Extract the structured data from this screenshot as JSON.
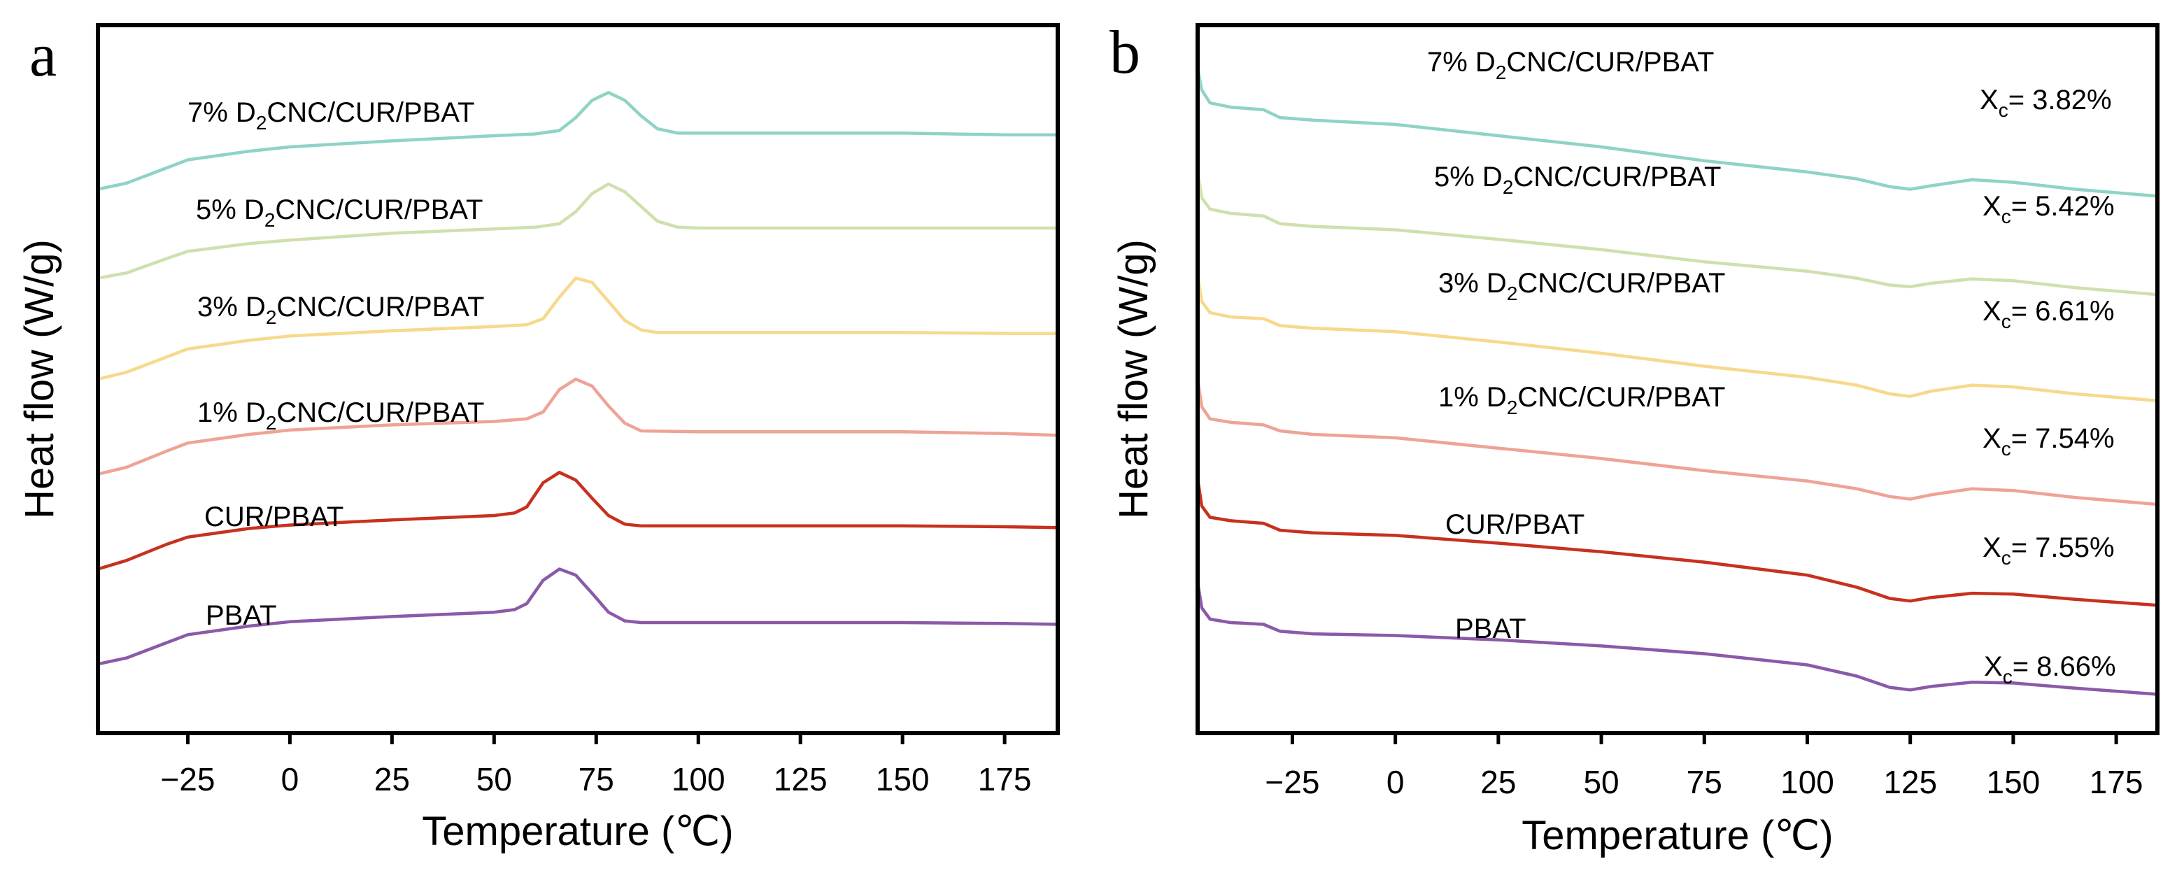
{
  "chart_data": [
    {
      "panel_letter": "a",
      "type": "line",
      "xlabel": "Temperature (℃)",
      "ylabel": "Heat flow (W/g)",
      "xlim": [
        -47,
        188
      ],
      "xticks": [
        "−25",
        "0",
        "25",
        "50",
        "75",
        "100",
        "125",
        "150",
        "175"
      ],
      "xtick_values": [
        -25,
        0,
        25,
        50,
        75,
        100,
        125,
        150,
        175
      ],
      "y_ticks_shown": false,
      "series": [
        {
          "name": "7% D2CNC/CUR/PBAT",
          "label_main": "7% D",
          "label_sub": "2",
          "label_rest": "CNC/CUR/PBAT",
          "color": "#8fd3c6",
          "x": [
            -47,
            -40,
            -30,
            -25,
            -10,
            0,
            25,
            50,
            60,
            66,
            70,
            74,
            78,
            82,
            86,
            90,
            95,
            100,
            125,
            150,
            175,
            188
          ],
          "y": [
            4.3,
            4.37,
            4.55,
            4.64,
            4.74,
            4.79,
            4.86,
            4.92,
            4.94,
            4.98,
            5.13,
            5.33,
            5.42,
            5.33,
            5.15,
            5.0,
            4.95,
            4.95,
            4.95,
            4.95,
            4.93,
            4.93
          ]
        },
        {
          "name": "5% D2CNC/CUR/PBAT",
          "label_main": "5% D",
          "label_sub": "2",
          "label_rest": "CNC/CUR/PBAT",
          "color": "#cfe0ae",
          "x": [
            -47,
            -40,
            -30,
            -25,
            -10,
            0,
            25,
            50,
            60,
            66,
            70,
            74,
            78,
            82,
            86,
            90,
            95,
            100,
            125,
            150,
            175,
            188
          ],
          "y": [
            3.27,
            3.33,
            3.5,
            3.58,
            3.67,
            3.71,
            3.79,
            3.84,
            3.86,
            3.9,
            4.04,
            4.25,
            4.36,
            4.27,
            4.1,
            3.93,
            3.86,
            3.85,
            3.85,
            3.85,
            3.85,
            3.85
          ]
        },
        {
          "name": "3% D2CNC/CUR/PBAT",
          "label_main": "3% D",
          "label_sub": "2",
          "label_rest": "CNC/CUR/PBAT",
          "color": "#f7d98c",
          "x": [
            -47,
            -40,
            -30,
            -25,
            -10,
            0,
            25,
            50,
            58,
            62,
            66,
            70,
            74,
            78,
            82,
            86,
            90,
            100,
            125,
            150,
            175,
            188
          ],
          "y": [
            2.1,
            2.18,
            2.36,
            2.45,
            2.55,
            2.6,
            2.66,
            2.71,
            2.73,
            2.8,
            3.05,
            3.27,
            3.22,
            3.0,
            2.78,
            2.67,
            2.64,
            2.64,
            2.64,
            2.64,
            2.63,
            2.63
          ]
        },
        {
          "name": "1% D2CNC/CUR/PBAT",
          "label_main": "1% D",
          "label_sub": "2",
          "label_rest": "CNC/CUR/PBAT",
          "color": "#eea396",
          "x": [
            -47,
            -40,
            -30,
            -25,
            -10,
            0,
            25,
            50,
            58,
            62,
            66,
            70,
            74,
            78,
            82,
            86,
            100,
            125,
            150,
            175,
            188
          ],
          "y": [
            1.0,
            1.08,
            1.27,
            1.36,
            1.46,
            1.51,
            1.57,
            1.61,
            1.64,
            1.72,
            1.98,
            2.1,
            2.02,
            1.79,
            1.59,
            1.5,
            1.49,
            1.49,
            1.49,
            1.47,
            1.45
          ]
        },
        {
          "name": "CUR/PBAT",
          "label_main": "CUR/PBAT",
          "label_sub": "",
          "label_rest": "",
          "color": "#c7311f",
          "x": [
            -47,
            -40,
            -30,
            -25,
            -10,
            0,
            25,
            50,
            55,
            58,
            62,
            66,
            70,
            74,
            78,
            82,
            86,
            100,
            125,
            150,
            175,
            188
          ],
          "y": [
            -0.1,
            0.0,
            0.19,
            0.27,
            0.37,
            0.41,
            0.47,
            0.52,
            0.55,
            0.62,
            0.9,
            1.02,
            0.93,
            0.72,
            0.52,
            0.42,
            0.4,
            0.4,
            0.4,
            0.4,
            0.39,
            0.38
          ]
        },
        {
          "name": "PBAT",
          "label_main": "PBAT",
          "label_sub": "",
          "label_rest": "",
          "color": "#8a5aa8",
          "x": [
            -47,
            -40,
            -30,
            -25,
            -10,
            0,
            25,
            50,
            55,
            58,
            62,
            66,
            70,
            74,
            78,
            82,
            86,
            100,
            125,
            150,
            175,
            188
          ],
          "y": [
            -1.2,
            -1.13,
            -0.95,
            -0.86,
            -0.76,
            -0.71,
            -0.65,
            -0.6,
            -0.57,
            -0.5,
            -0.23,
            -0.1,
            -0.17,
            -0.38,
            -0.6,
            -0.7,
            -0.72,
            -0.72,
            -0.72,
            -0.72,
            -0.73,
            -0.74
          ]
        }
      ]
    },
    {
      "panel_letter": "b",
      "type": "line",
      "xlabel": "Temperature (℃)",
      "ylabel": "Heat flow (W/g)",
      "xlim": [
        -48,
        185
      ],
      "xticks": [
        "−25",
        "0",
        "25",
        "50",
        "75",
        "100",
        "125",
        "150",
        "175"
      ],
      "xtick_values": [
        -25,
        0,
        25,
        50,
        75,
        100,
        125,
        150,
        175
      ],
      "y_ticks_shown": false,
      "series": [
        {
          "name": "7% D2CNC/CUR/PBAT",
          "label_main": "7% D",
          "label_sub": "2",
          "label_rest": "CNC/CUR/PBAT",
          "xc_sub": "c",
          "xc_value": "= 3.82%",
          "color": "#8fd3c6",
          "x": [
            -48,
            -47,
            -45,
            -40,
            -32,
            -28,
            -20,
            0,
            25,
            50,
            75,
            100,
            112,
            120,
            125,
            130,
            140,
            150,
            165,
            185
          ],
          "y": [
            5.7,
            5.45,
            5.3,
            5.25,
            5.22,
            5.13,
            5.1,
            5.05,
            4.92,
            4.79,
            4.63,
            4.5,
            4.42,
            4.33,
            4.3,
            4.34,
            4.41,
            4.38,
            4.3,
            4.22
          ]
        },
        {
          "name": "5% D2CNC/CUR/PBAT",
          "label_main": "5% D",
          "label_sub": "2",
          "label_rest": "CNC/CUR/PBAT",
          "xc_sub": "c",
          "xc_value": "= 5.42%",
          "color": "#cfe0ae",
          "x": [
            -48,
            -47,
            -45,
            -40,
            -32,
            -28,
            -20,
            0,
            25,
            50,
            75,
            100,
            112,
            120,
            125,
            130,
            140,
            150,
            165,
            185
          ],
          "y": [
            4.5,
            4.2,
            4.07,
            4.02,
            3.99,
            3.9,
            3.87,
            3.83,
            3.72,
            3.6,
            3.46,
            3.35,
            3.27,
            3.19,
            3.17,
            3.21,
            3.26,
            3.24,
            3.16,
            3.08
          ]
        },
        {
          "name": "3% D2CNC/CUR/PBAT",
          "label_main": "3% D",
          "label_sub": "2",
          "label_rest": "CNC/CUR/PBAT",
          "xc_sub": "c",
          "xc_value": "= 6.61%",
          "color": "#f7d98c",
          "x": [
            -48,
            -47,
            -45,
            -40,
            -32,
            -28,
            -20,
            0,
            25,
            50,
            75,
            100,
            112,
            120,
            125,
            130,
            140,
            150,
            165,
            185
          ],
          "y": [
            3.3,
            3.0,
            2.87,
            2.82,
            2.8,
            2.72,
            2.69,
            2.65,
            2.53,
            2.4,
            2.25,
            2.12,
            2.03,
            1.93,
            1.9,
            1.96,
            2.03,
            2.01,
            1.93,
            1.85
          ]
        },
        {
          "name": "1% D2CNC/CUR/PBAT",
          "label_main": "1% D",
          "label_sub": "2",
          "label_rest": "CNC/CUR/PBAT",
          "xc_sub": "c",
          "xc_value": "= 7.54%",
          "color": "#eea396",
          "x": [
            -48,
            -47,
            -45,
            -40,
            -32,
            -28,
            -20,
            0,
            25,
            50,
            75,
            100,
            112,
            120,
            125,
            130,
            140,
            150,
            165,
            185
          ],
          "y": [
            2.1,
            1.78,
            1.64,
            1.6,
            1.57,
            1.5,
            1.46,
            1.42,
            1.3,
            1.18,
            1.04,
            0.92,
            0.83,
            0.74,
            0.71,
            0.76,
            0.83,
            0.81,
            0.73,
            0.65
          ]
        },
        {
          "name": "CUR/PBAT",
          "label_main": "CUR/PBAT",
          "label_sub": "",
          "label_rest": "",
          "xc_sub": "c",
          "xc_value": "= 7.55%",
          "color": "#c7311f",
          "x": [
            -48,
            -47,
            -45,
            -40,
            -32,
            -28,
            -20,
            0,
            25,
            50,
            75,
            100,
            112,
            120,
            125,
            130,
            140,
            150,
            165,
            185
          ],
          "y": [
            0.95,
            0.63,
            0.5,
            0.46,
            0.43,
            0.35,
            0.32,
            0.29,
            0.2,
            0.1,
            -0.02,
            -0.17,
            -0.31,
            -0.44,
            -0.47,
            -0.43,
            -0.38,
            -0.39,
            -0.45,
            -0.52
          ]
        },
        {
          "name": "PBAT",
          "label_main": "PBAT",
          "label_sub": "",
          "label_rest": "",
          "xc_sub": "c",
          "xc_value": "= 8.66%",
          "color": "#8a5aa8",
          "x": [
            -48,
            -47,
            -45,
            -40,
            -32,
            -28,
            -20,
            0,
            25,
            50,
            75,
            100,
            112,
            120,
            125,
            130,
            140,
            150,
            165,
            185
          ],
          "y": [
            -0.25,
            -0.55,
            -0.68,
            -0.72,
            -0.74,
            -0.82,
            -0.85,
            -0.87,
            -0.92,
            -0.99,
            -1.08,
            -1.21,
            -1.34,
            -1.47,
            -1.5,
            -1.46,
            -1.41,
            -1.42,
            -1.48,
            -1.55
          ]
        }
      ]
    }
  ]
}
